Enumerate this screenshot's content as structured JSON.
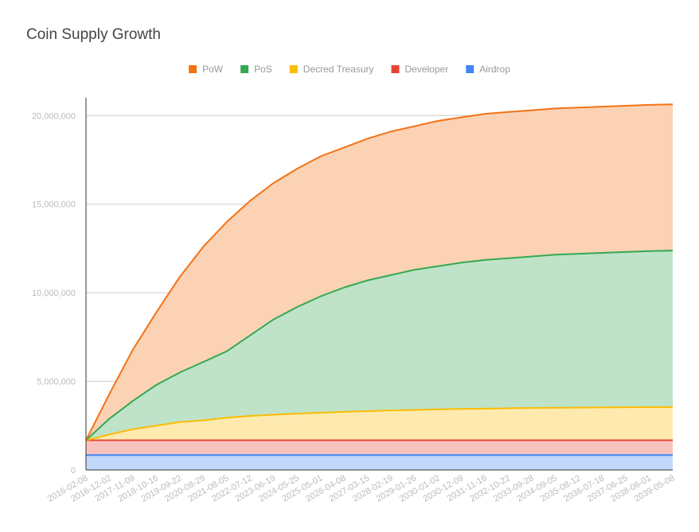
{
  "chart_data": {
    "type": "area",
    "title": "Coin Supply Growth",
    "xlabel": "",
    "ylabel": "",
    "stacked": true,
    "ylim": [
      0,
      21000000
    ],
    "yticks": [
      0,
      5000000,
      10000000,
      15000000,
      20000000
    ],
    "ytick_labels": [
      "0",
      "5,000,000",
      "10,000,000",
      "15,000,000",
      "20,000,000"
    ],
    "grid": true,
    "legend_position": "top",
    "x": [
      "2016-02-08",
      "2016-12-02",
      "2017-11-09",
      "2018-10-16",
      "2019-09-22",
      "2020-08-29",
      "2021-08-05",
      "2022-07-12",
      "2023-06-19",
      "2024-05-25",
      "2025-05-01",
      "2026-04-08",
      "2027-03-15",
      "2028-02-19",
      "2029-01-26",
      "2030-01-02",
      "2030-12-09",
      "2031-11-16",
      "2032-10-22",
      "2033-09-28",
      "2034-09-05",
      "2035-08-12",
      "2036-07-18",
      "2037-06-25",
      "2038-06-01",
      "2039-05-08"
    ],
    "series": [
      {
        "name": "PoW",
        "color": "#f47216",
        "totals": [
          1680000,
          4300000,
          6800000,
          8900000,
          10900000,
          12600000,
          14000000,
          15200000,
          16200000,
          17000000,
          17700000,
          18200000,
          18700000,
          19100000,
          19400000,
          19700000,
          19900000,
          20100000,
          20200000,
          20300000,
          20400000,
          20450000,
          20500000,
          20550000,
          20600000,
          20630000
        ]
      },
      {
        "name": "PoS",
        "color": "#34a853",
        "totals": [
          1680000,
          2900000,
          3900000,
          4800000,
          5500000,
          6100000,
          6700000,
          7600000,
          8500000,
          9200000,
          9800000,
          10300000,
          10700000,
          11000000,
          11300000,
          11500000,
          11700000,
          11850000,
          11950000,
          12050000,
          12150000,
          12200000,
          12250000,
          12300000,
          12350000,
          12380000
        ]
      },
      {
        "name": "Decred Treasury",
        "color": "#fbbc04",
        "totals": [
          1680000,
          2000000,
          2300000,
          2500000,
          2700000,
          2800000,
          2950000,
          3050000,
          3120000,
          3180000,
          3230000,
          3280000,
          3320000,
          3360000,
          3390000,
          3420000,
          3440000,
          3460000,
          3480000,
          3500000,
          3510000,
          3520000,
          3530000,
          3540000,
          3545000,
          3550000
        ]
      },
      {
        "name": "Developer",
        "color": "#ea4335",
        "totals": [
          1680000,
          1680000,
          1680000,
          1680000,
          1680000,
          1680000,
          1680000,
          1680000,
          1680000,
          1680000,
          1680000,
          1680000,
          1680000,
          1680000,
          1680000,
          1680000,
          1680000,
          1680000,
          1680000,
          1680000,
          1680000,
          1680000,
          1680000,
          1680000,
          1680000,
          1680000
        ]
      },
      {
        "name": "Airdrop",
        "color": "#4285f4",
        "totals": [
          840000,
          840000,
          840000,
          840000,
          840000,
          840000,
          840000,
          840000,
          840000,
          840000,
          840000,
          840000,
          840000,
          840000,
          840000,
          840000,
          840000,
          840000,
          840000,
          840000,
          840000,
          840000,
          840000,
          840000,
          840000,
          840000
        ]
      }
    ]
  }
}
